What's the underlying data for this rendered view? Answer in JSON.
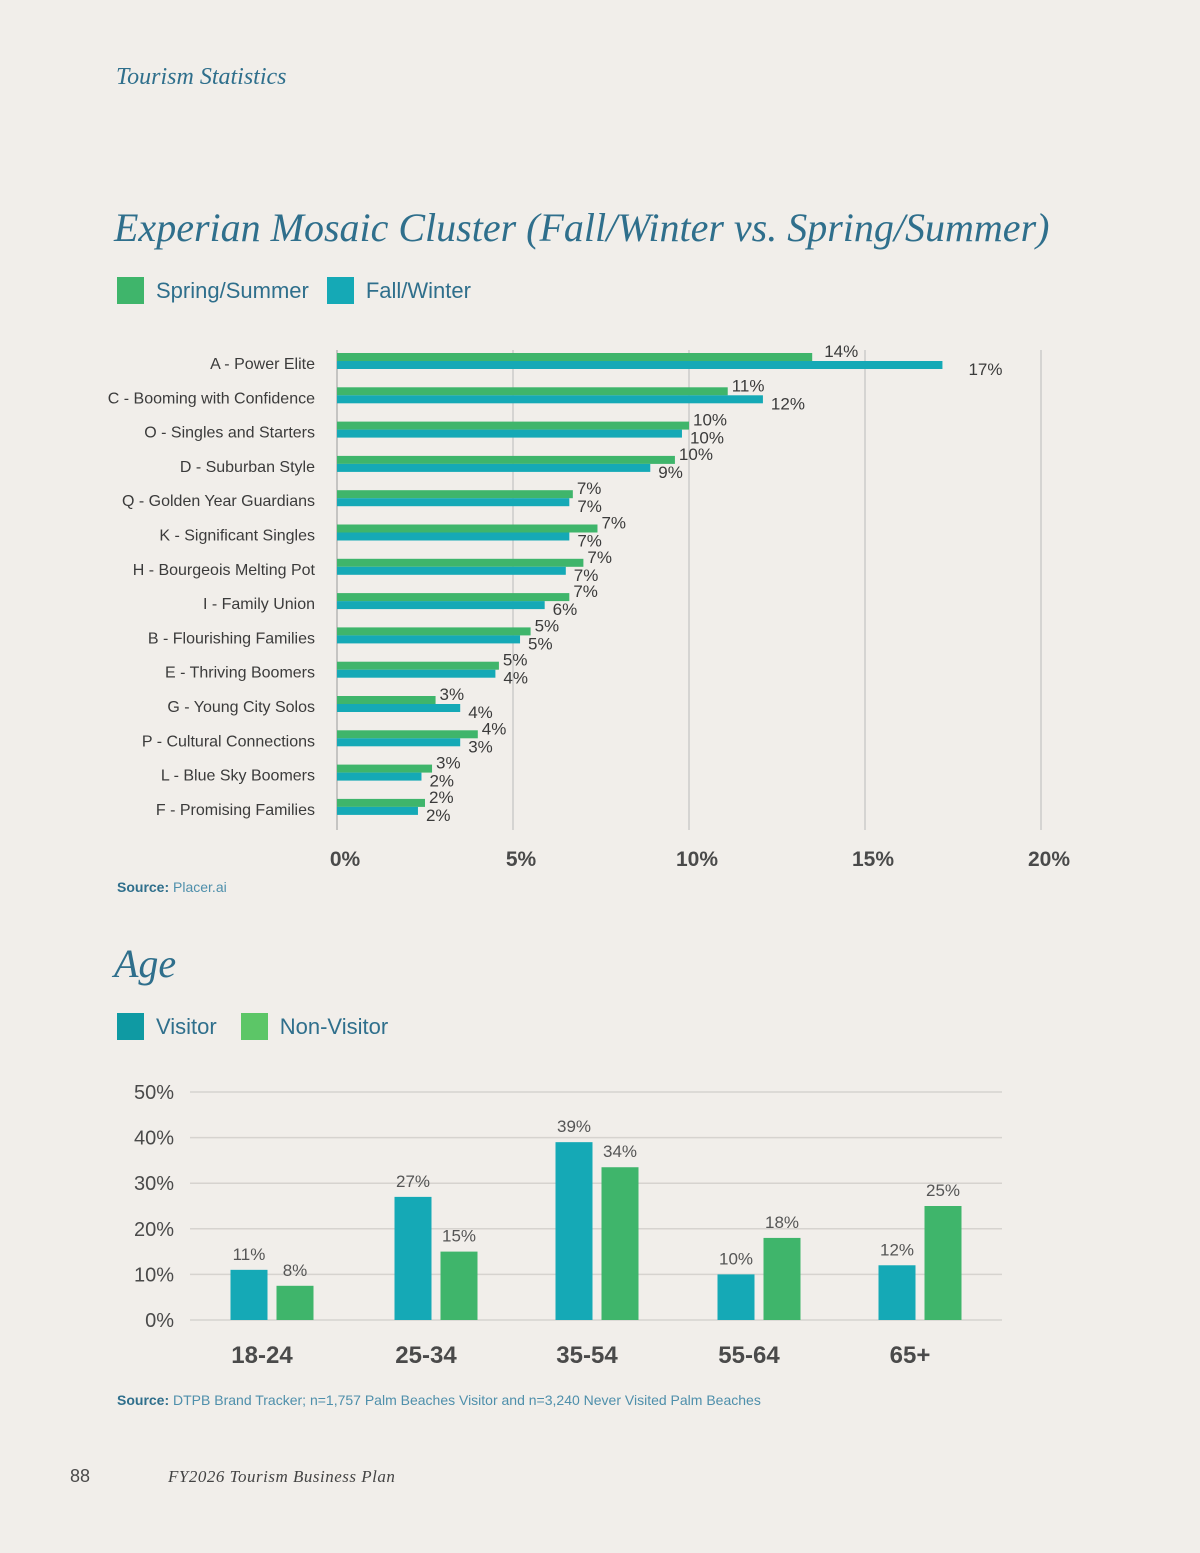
{
  "header": {
    "kicker": "Tourism Statistics"
  },
  "colors": {
    "spring_summer": "#3fb56b",
    "fall_winter": "#15a9b6",
    "visitor": "#15a9b6",
    "non_visitor": "#3fb56b",
    "title": "#2f6f8c",
    "gridline": "#b9b9b9"
  },
  "mosaic": {
    "legend": [
      "Spring/Summer",
      "Fall/Winter"
    ],
    "source_label": "Source:",
    "source_text": "Placer.ai"
  },
  "age": {
    "legend": [
      "Visitor",
      "Non-Visitor"
    ],
    "source_label": "Source:",
    "source_text": "DTPB Brand Tracker; n=1,757 Palm Beaches Visitor and n=3,240 Never Visited Palm Beaches"
  },
  "chart_data": [
    {
      "type": "bar",
      "orientation": "horizontal",
      "title": "Experian Mosaic Cluster (Fall/Winter vs. Spring/Summer)",
      "categories": [
        "A - Power Elite",
        "C - Booming with Confidence",
        "O - Singles and Starters",
        "D - Suburban Style",
        "Q - Golden Year Guardians",
        "K - Significant Singles",
        "H - Bourgeois Melting Pot",
        "I - Family Union",
        "B - Flourishing Families",
        "E - Thriving Boomers",
        "G - Young City Solos",
        "P - Cultural Connections",
        "L - Blue Sky Boomers",
        "F - Promising Families"
      ],
      "series": [
        {
          "name": "Spring/Summer",
          "values": [
            13.5,
            11.1,
            10.0,
            9.6,
            6.7,
            7.4,
            7.0,
            6.6,
            5.5,
            4.6,
            2.8,
            4.0,
            2.7,
            2.5
          ],
          "labels": [
            "14%",
            "11%",
            "10%",
            "10%",
            "7%",
            "7%",
            "7%",
            "7%",
            "5%",
            "5%",
            "3%",
            "4%",
            "3%",
            "2%"
          ]
        },
        {
          "name": "Fall/Winter",
          "values": [
            17.2,
            12.1,
            9.8,
            8.9,
            6.6,
            6.6,
            6.5,
            5.9,
            5.2,
            4.5,
            3.5,
            3.5,
            2.4,
            2.3
          ],
          "labels": [
            "17%",
            "12%",
            "10%",
            "9%",
            "7%",
            "7%",
            "7%",
            "6%",
            "5%",
            "4%",
            "4%",
            "3%",
            "2%",
            "2%"
          ]
        }
      ],
      "x_ticks": [
        "0%",
        "5%",
        "10%",
        "15%",
        "20%"
      ],
      "xlim": [
        0,
        20
      ],
      "grid": true,
      "legend_position": "top-left"
    },
    {
      "type": "bar",
      "orientation": "vertical",
      "title": "Age",
      "categories": [
        "18-24",
        "25-34",
        "35-54",
        "55-64",
        "65+"
      ],
      "series": [
        {
          "name": "Visitor",
          "values": [
            11,
            27,
            39,
            10,
            12
          ],
          "labels": [
            "11%",
            "27%",
            "39%",
            "10%",
            "12%"
          ]
        },
        {
          "name": "Non-Visitor",
          "values": [
            7.5,
            15,
            33.5,
            18,
            25
          ],
          "labels": [
            "8%",
            "15%",
            "34%",
            "18%",
            "25%"
          ]
        }
      ],
      "y_ticks": [
        "50%",
        "40%",
        "30%",
        "20%",
        "10%",
        "0%"
      ],
      "ylim": [
        0,
        50
      ],
      "grid": true,
      "legend_position": "top-left"
    }
  ],
  "footer": {
    "page_number": "88",
    "doc_title": "FY2026 Tourism Business Plan"
  }
}
